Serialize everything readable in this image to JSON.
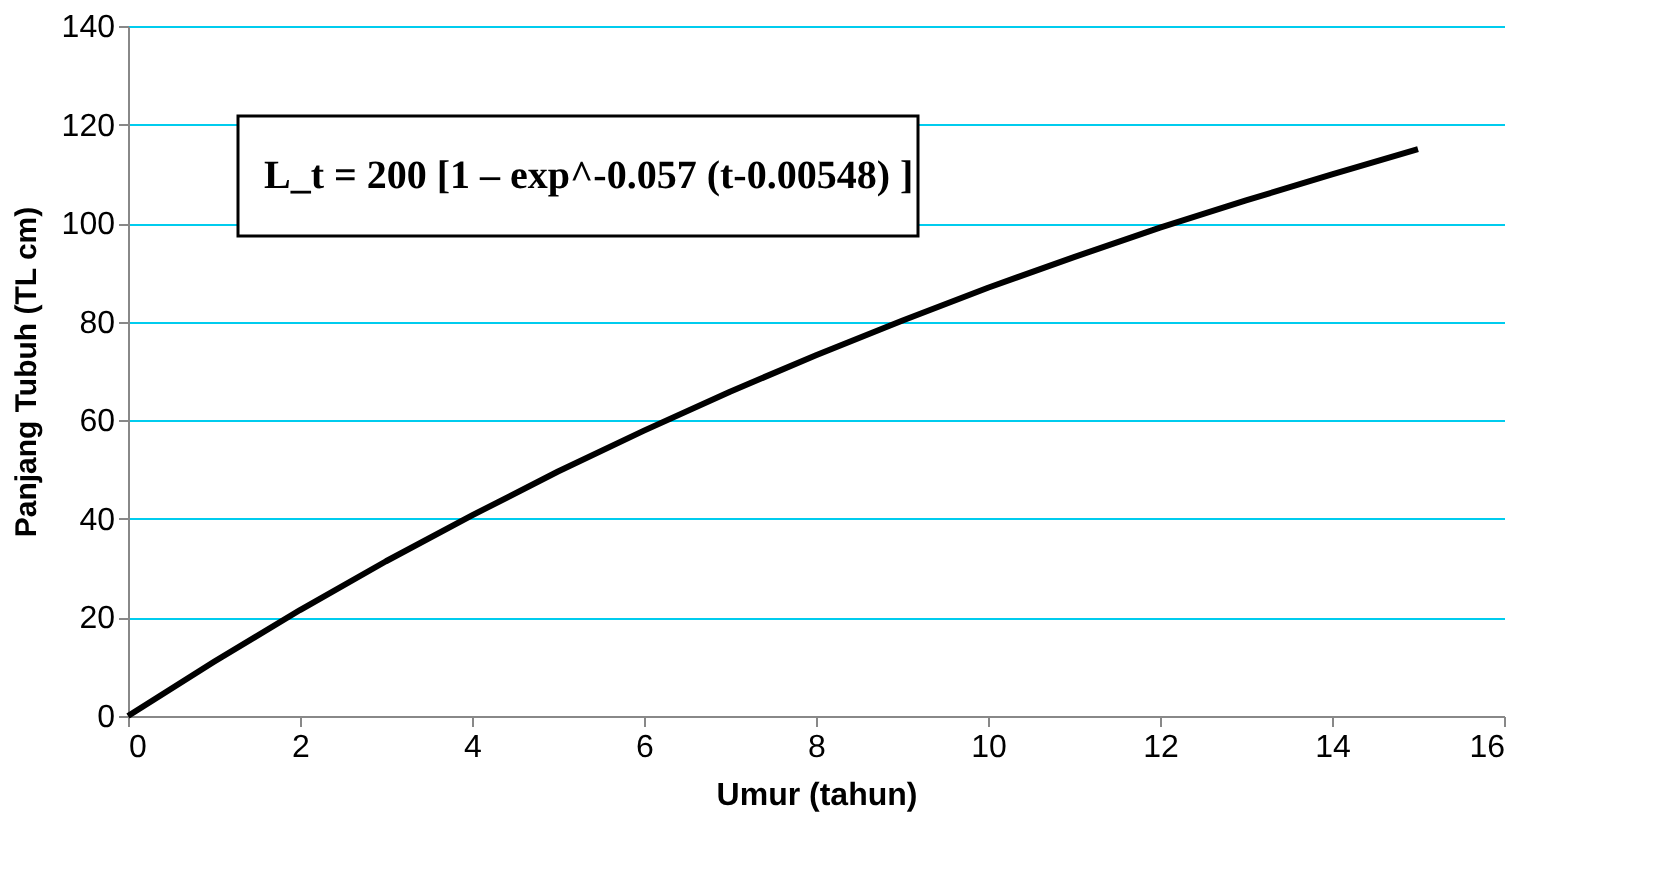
{
  "chart_data": {
    "type": "line",
    "xlabel": "Umur  (tahun)",
    "ylabel": "Panjang Tubuh (TL cm)",
    "x": [
      0,
      1,
      2,
      3,
      4,
      5,
      6,
      7,
      8,
      9,
      10,
      11,
      12,
      13,
      14,
      15
    ],
    "series": [
      {
        "color": "#000000",
        "values": [
          0,
          11.0,
          21.5,
          31.4,
          40.7,
          49.6,
          57.9,
          65.8,
          73.2,
          80.2,
          86.9,
          93.1,
          99.1,
          104.6,
          109.9,
          115.0
        ]
      }
    ],
    "xlim": [
      0,
      16
    ],
    "xticks": [
      0,
      2,
      4,
      6,
      8,
      10,
      12,
      14,
      16
    ],
    "ylim": [
      0,
      140
    ],
    "yticks": [
      0,
      20,
      40,
      60,
      80,
      100,
      120,
      140
    ],
    "grid": "y",
    "marker": "none",
    "line_style": "solid",
    "annotations": [
      "L_t = 200 [1 – exp^-0.057 (t-0.00548) ]"
    ]
  }
}
